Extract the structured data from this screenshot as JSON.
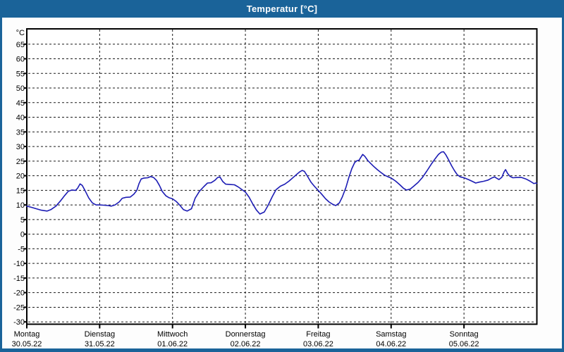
{
  "window": {
    "title": "Temperatur [°C]"
  },
  "colors": {
    "titlebar_bg": "#1A6399",
    "titlebar_text": "#FFFFFF",
    "window_border": "#1A6399",
    "content_bg": "#FDFDFD",
    "plot_bg": "#FFFFFF",
    "frame": "#000000",
    "grid": "#1A1A1A",
    "line": "#1C1CB4"
  },
  "chart_data": {
    "type": "line",
    "title": "Temperatur [°C]",
    "grid": "dashed",
    "legend_position": "none",
    "y_axis": {
      "unit": "°C",
      "min": -30,
      "max": 65,
      "step": 5,
      "plot_top_value": 70
    },
    "x_axis": {
      "days": [
        {
          "name": "Montag",
          "date": "30.05.22"
        },
        {
          "name": "Dienstag",
          "date": "31.05.22"
        },
        {
          "name": "Mittwoch",
          "date": "01.06.22"
        },
        {
          "name": "Donnerstag",
          "date": "02.06.22"
        },
        {
          "name": "Freitag",
          "date": "03.06.22"
        },
        {
          "name": "Samstag",
          "date": "04.06.22"
        },
        {
          "name": "Sonntag",
          "date": "05.06.22"
        }
      ],
      "span_days": 7
    },
    "series": [
      {
        "name": "Temperatur",
        "color": "#1C1CB4",
        "points_day_temp": [
          [
            0.0,
            9.6
          ],
          [
            0.06,
            9.2
          ],
          [
            0.13,
            8.7
          ],
          [
            0.2,
            8.2
          ],
          [
            0.28,
            7.9
          ],
          [
            0.33,
            8.4
          ],
          [
            0.4,
            9.6
          ],
          [
            0.46,
            11.3
          ],
          [
            0.52,
            13.2
          ],
          [
            0.57,
            14.7
          ],
          [
            0.62,
            15.1
          ],
          [
            0.67,
            15.0
          ],
          [
            0.7,
            15.8
          ],
          [
            0.73,
            17.2
          ],
          [
            0.76,
            16.7
          ],
          [
            0.8,
            14.9
          ],
          [
            0.85,
            12.4
          ],
          [
            0.9,
            10.7
          ],
          [
            0.95,
            10.0
          ],
          [
            1.0,
            10.0
          ],
          [
            1.06,
            9.9
          ],
          [
            1.12,
            9.8
          ],
          [
            1.16,
            9.6
          ],
          [
            1.21,
            10.0
          ],
          [
            1.27,
            11.1
          ],
          [
            1.31,
            12.3
          ],
          [
            1.36,
            12.6
          ],
          [
            1.42,
            12.7
          ],
          [
            1.47,
            13.7
          ],
          [
            1.51,
            15.0
          ],
          [
            1.54,
            17.3
          ],
          [
            1.57,
            18.9
          ],
          [
            1.61,
            19.2
          ],
          [
            1.66,
            19.3
          ],
          [
            1.7,
            19.7
          ],
          [
            1.74,
            19.4
          ],
          [
            1.78,
            18.4
          ],
          [
            1.82,
            16.7
          ],
          [
            1.86,
            14.6
          ],
          [
            1.91,
            13.1
          ],
          [
            1.95,
            12.5
          ],
          [
            2.0,
            12.1
          ],
          [
            2.05,
            11.2
          ],
          [
            2.1,
            9.9
          ],
          [
            2.15,
            8.4
          ],
          [
            2.2,
            7.9
          ],
          [
            2.26,
            8.7
          ],
          [
            2.31,
            12.3
          ],
          [
            2.37,
            14.7
          ],
          [
            2.43,
            16.3
          ],
          [
            2.48,
            17.5
          ],
          [
            2.53,
            17.6
          ],
          [
            2.58,
            18.4
          ],
          [
            2.62,
            19.4
          ],
          [
            2.65,
            19.6
          ],
          [
            2.69,
            18.0
          ],
          [
            2.73,
            17.1
          ],
          [
            2.79,
            17.0
          ],
          [
            2.85,
            16.9
          ],
          [
            2.9,
            16.2
          ],
          [
            2.95,
            15.3
          ],
          [
            3.0,
            14.4
          ],
          [
            3.05,
            12.7
          ],
          [
            3.1,
            10.4
          ],
          [
            3.15,
            8.3
          ],
          [
            3.2,
            6.9
          ],
          [
            3.26,
            7.6
          ],
          [
            3.31,
            9.8
          ],
          [
            3.37,
            12.9
          ],
          [
            3.42,
            15.2
          ],
          [
            3.48,
            16.4
          ],
          [
            3.54,
            17.1
          ],
          [
            3.6,
            18.2
          ],
          [
            3.66,
            19.5
          ],
          [
            3.71,
            20.6
          ],
          [
            3.75,
            21.4
          ],
          [
            3.78,
            21.8
          ],
          [
            3.81,
            21.5
          ],
          [
            3.85,
            19.9
          ],
          [
            3.9,
            17.8
          ],
          [
            3.95,
            16.3
          ],
          [
            4.0,
            15.0
          ],
          [
            4.05,
            13.6
          ],
          [
            4.1,
            12.1
          ],
          [
            4.15,
            11.0
          ],
          [
            4.2,
            10.2
          ],
          [
            4.24,
            9.8
          ],
          [
            4.29,
            10.7
          ],
          [
            4.33,
            12.7
          ],
          [
            4.38,
            16.0
          ],
          [
            4.42,
            19.4
          ],
          [
            4.46,
            22.4
          ],
          [
            4.5,
            24.5
          ],
          [
            4.53,
            25.1
          ],
          [
            4.56,
            25.3
          ],
          [
            4.59,
            26.5
          ],
          [
            4.61,
            27.3
          ],
          [
            4.64,
            26.6
          ],
          [
            4.68,
            25.2
          ],
          [
            4.72,
            24.2
          ],
          [
            4.76,
            23.2
          ],
          [
            4.81,
            22.1
          ],
          [
            4.86,
            21.1
          ],
          [
            4.91,
            20.2
          ],
          [
            4.96,
            19.6
          ],
          [
            5.0,
            19.2
          ],
          [
            5.06,
            18.2
          ],
          [
            5.12,
            16.9
          ],
          [
            5.17,
            15.7
          ],
          [
            5.21,
            15.1
          ],
          [
            5.26,
            15.4
          ],
          [
            5.31,
            16.4
          ],
          [
            5.37,
            17.7
          ],
          [
            5.43,
            19.4
          ],
          [
            5.49,
            21.6
          ],
          [
            5.55,
            23.9
          ],
          [
            5.61,
            26.0
          ],
          [
            5.65,
            27.3
          ],
          [
            5.69,
            28.1
          ],
          [
            5.72,
            28.2
          ],
          [
            5.75,
            27.2
          ],
          [
            5.79,
            25.4
          ],
          [
            5.83,
            23.4
          ],
          [
            5.87,
            21.7
          ],
          [
            5.91,
            20.3
          ],
          [
            5.95,
            19.6
          ],
          [
            6.0,
            19.3
          ],
          [
            6.06,
            18.7
          ],
          [
            6.12,
            18.0
          ],
          [
            6.16,
            17.5
          ],
          [
            6.21,
            17.8
          ],
          [
            6.27,
            18.1
          ],
          [
            6.33,
            18.5
          ],
          [
            6.38,
            19.2
          ],
          [
            6.42,
            19.6
          ],
          [
            6.45,
            19.1
          ],
          [
            6.48,
            18.7
          ],
          [
            6.52,
            19.5
          ],
          [
            6.55,
            21.3
          ],
          [
            6.57,
            22.1
          ],
          [
            6.6,
            20.7
          ],
          [
            6.63,
            19.8
          ],
          [
            6.67,
            19.3
          ],
          [
            6.73,
            19.4
          ],
          [
            6.79,
            19.4
          ],
          [
            6.85,
            18.9
          ],
          [
            6.91,
            18.1
          ],
          [
            6.96,
            17.3
          ],
          [
            6.985,
            17.5
          ],
          [
            7.0,
            17.4
          ]
        ]
      }
    ]
  }
}
